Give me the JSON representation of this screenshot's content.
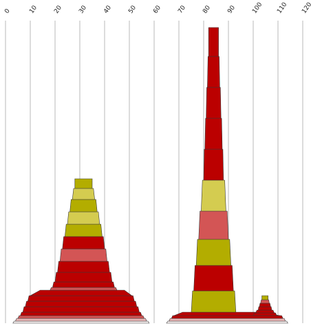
{
  "chart_data": {
    "type": "area",
    "title": "",
    "xlabel": "",
    "ylabel": "",
    "xlim": [
      0,
      120
    ],
    "x_ticks": [
      "0",
      "10",
      "20",
      "30",
      "40",
      "50",
      "60",
      "70",
      "80",
      "90",
      "100",
      "110",
      "120"
    ],
    "grid": true,
    "legend": "none",
    "colors": {
      "dark_red": "#bb0000",
      "light_red": "#d35555",
      "dark_olive": "#b3ad00",
      "light_olive": "#d4cc50",
      "pale_pink": "#e8b4b4",
      "bottom_white": "#f6f0f0"
    },
    "stacks": [
      {
        "bands": [
          {
            "x1": 28,
            "x2": 35,
            "h": 14,
            "color": "dark_olive"
          },
          {
            "x1": 27,
            "x2": 36,
            "h": 16,
            "color": "light_olive"
          },
          {
            "x1": 26,
            "x2": 37,
            "h": 18,
            "color": "dark_olive"
          },
          {
            "x1": 25,
            "x2": 38,
            "h": 18,
            "color": "light_olive"
          },
          {
            "x1": 24,
            "x2": 39,
            "h": 18,
            "color": "dark_olive"
          },
          {
            "x1": 23,
            "x2": 40,
            "h": 18,
            "color": "dark_red"
          },
          {
            "x1": 22,
            "x2": 41,
            "h": 18,
            "color": "light_red"
          },
          {
            "x1": 21,
            "x2": 42,
            "h": 16,
            "color": "dark_red"
          },
          {
            "x1": 20,
            "x2": 43,
            "h": 14,
            "color": "dark_red"
          },
          {
            "x1": 19,
            "x2": 44,
            "h": 8,
            "color": "dark_red"
          },
          {
            "x1": 18,
            "x2": 45,
            "h": 4,
            "color": "light_red"
          },
          {
            "x1": 10,
            "x2": 51,
            "h": 8,
            "color": "dark_red"
          },
          {
            "x1": 9,
            "x2": 52,
            "h": 8,
            "color": "dark_red"
          },
          {
            "x1": 8,
            "x2": 53,
            "h": 8,
            "color": "dark_red"
          },
          {
            "x1": 7,
            "x2": 54,
            "h": 8,
            "color": "dark_red"
          },
          {
            "x1": 6,
            "x2": 55,
            "h": 5,
            "color": "dark_red"
          },
          {
            "x1": 5,
            "x2": 56,
            "h": 4,
            "color": "light_red"
          },
          {
            "x1": 4,
            "x2": 57,
            "h": 4,
            "color": "pale_pink"
          },
          {
            "x1": 3,
            "x2": 58,
            "h": 3,
            "color": "bottom_white"
          }
        ]
      },
      {
        "bands": [
          {
            "x1": 82,
            "x2": 86,
            "h": 42,
            "color": "dark_red"
          },
          {
            "x1": 81.5,
            "x2": 86.5,
            "h": 45,
            "color": "dark_red"
          },
          {
            "x1": 81,
            "x2": 87,
            "h": 45,
            "color": "dark_red"
          },
          {
            "x1": 80.5,
            "x2": 87.5,
            "h": 45,
            "color": "dark_red"
          },
          {
            "x1": 80,
            "x2": 88,
            "h": 45,
            "color": "dark_red"
          },
          {
            "x1": 79,
            "x2": 89,
            "h": 45,
            "color": "light_olive"
          },
          {
            "x1": 78,
            "x2": 90,
            "h": 41,
            "color": "light_red"
          },
          {
            "x1": 77,
            "x2": 91,
            "h": 38,
            "color": "dark_olive"
          },
          {
            "x1": 76,
            "x2": 92,
            "h": 37,
            "color": "dark_red"
          },
          {
            "x1": 75,
            "x2": 93,
            "h": 31,
            "color": "dark_olive"
          },
          {
            "x1": 68,
            "x2": 111,
            "h": 5,
            "color": "dark_red"
          },
          {
            "x1": 67,
            "x2": 112,
            "h": 4,
            "color": "dark_red"
          },
          {
            "x1": 66,
            "x2": 113,
            "h": 4,
            "color": "pale_pink"
          },
          {
            "x1": 65,
            "x2": 114,
            "h": 3,
            "color": "bottom_white"
          }
        ]
      },
      {
        "base_offset": 11,
        "bands": [
          {
            "x1": 103.5,
            "x2": 106,
            "h": 6,
            "color": "dark_olive"
          },
          {
            "x1": 103,
            "x2": 106.5,
            "h": 5,
            "color": "light_red"
          },
          {
            "x1": 102.5,
            "x2": 107,
            "h": 5,
            "color": "dark_red"
          },
          {
            "x1": 102,
            "x2": 107.5,
            "h": 5,
            "color": "dark_red"
          },
          {
            "x1": 101,
            "x2": 108.5,
            "h": 4,
            "color": "dark_red"
          },
          {
            "x1": 100,
            "x2": 109.5,
            "h": 4,
            "color": "dark_red"
          }
        ]
      }
    ]
  }
}
